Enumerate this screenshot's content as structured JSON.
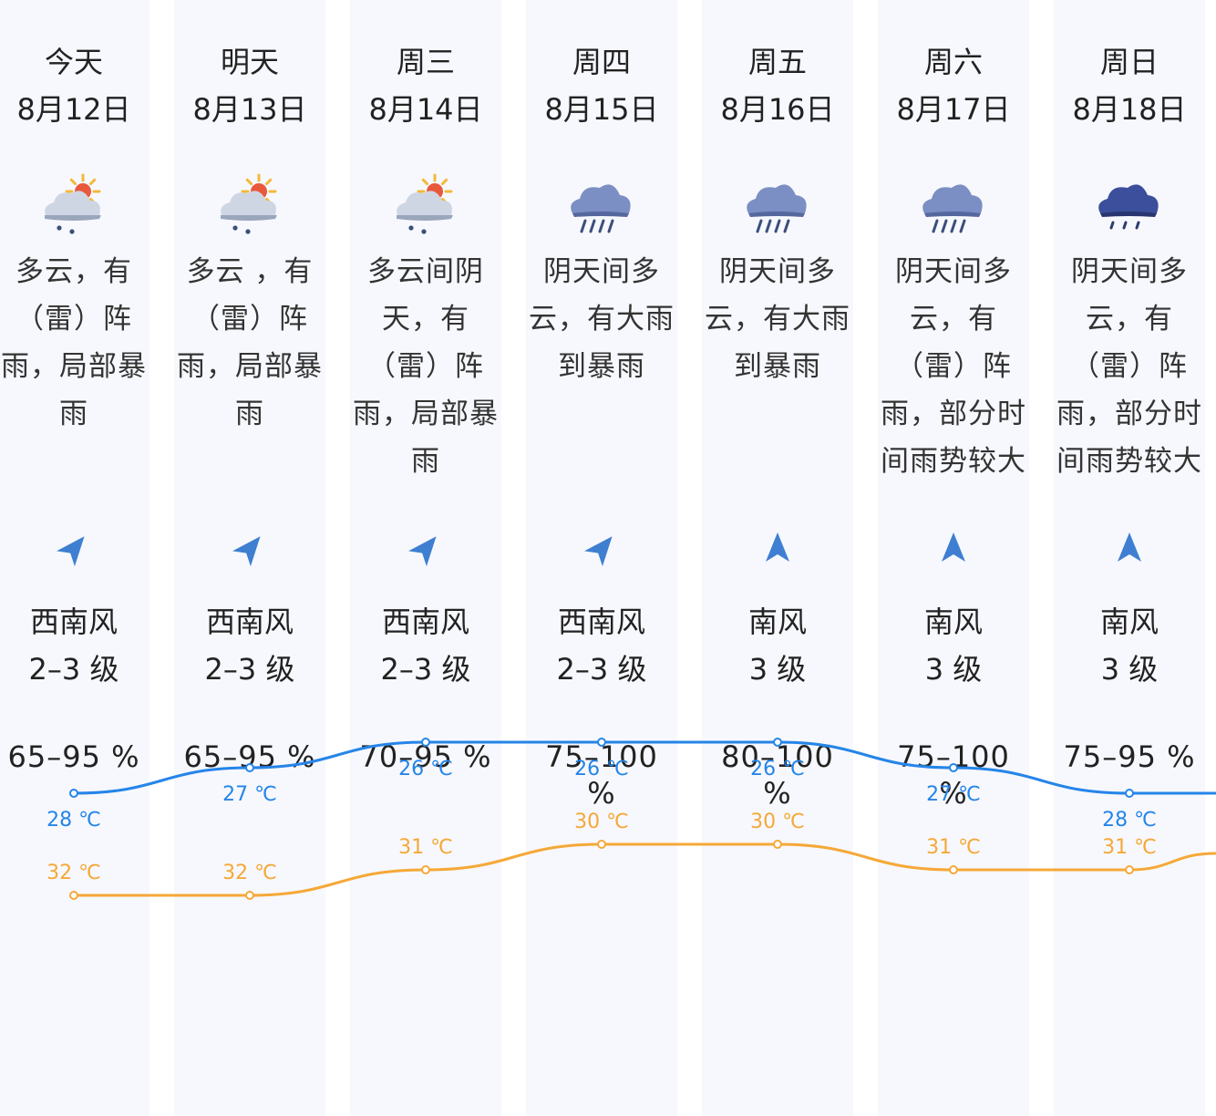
{
  "days": [
    {
      "weekday": "今天",
      "date": "8月12日",
      "icon": "partly-cloudy-thundershower-icon",
      "desc_lines": [
        "多云，有",
        "（雷）阵",
        "雨，局部暴",
        "雨"
      ],
      "wind_dir": "西南风",
      "wind_level": "2–3 级",
      "wind_arrow": "southwest-wind-arrow-icon",
      "humidity": "65–95 %",
      "high": "32 ℃",
      "low": "28 ℃"
    },
    {
      "weekday": "明天",
      "date": "8月13日",
      "icon": "partly-cloudy-thundershower-icon",
      "desc_lines": [
        "多云 ，有",
        "（雷）阵",
        "雨，局部暴",
        "雨"
      ],
      "wind_dir": "西南风",
      "wind_level": "2–3 级",
      "wind_arrow": "southwest-wind-arrow-icon",
      "humidity": "65–95 %",
      "high": "32 ℃",
      "low": "27 ℃"
    },
    {
      "weekday": "周三",
      "date": "8月14日",
      "icon": "partly-cloudy-thundershower-icon",
      "desc_lines": [
        "多云间阴",
        "天，有",
        "（雷）阵",
        "雨，局部暴",
        "雨"
      ],
      "wind_dir": "西南风",
      "wind_level": "2–3 级",
      "wind_arrow": "southwest-wind-arrow-icon",
      "humidity": "70–95 %",
      "high": "31 ℃",
      "low": "26 ℃"
    },
    {
      "weekday": "周四",
      "date": "8月15日",
      "icon": "heavy-rain-icon",
      "desc_lines": [
        "阴天间多",
        "云，有大雨",
        "到暴雨"
      ],
      "wind_dir": "西南风",
      "wind_level": "2–3 级",
      "wind_arrow": "southwest-wind-arrow-icon",
      "humidity": "75–100 %",
      "high": "30 ℃",
      "low": "26 ℃"
    },
    {
      "weekday": "周五",
      "date": "8月16日",
      "icon": "heavy-rain-icon",
      "desc_lines": [
        "阴天间多",
        "云，有大雨",
        "到暴雨"
      ],
      "wind_dir": "南风",
      "wind_level": "3 级",
      "wind_arrow": "south-wind-arrow-icon",
      "humidity": "80–100 %",
      "high": "30 ℃",
      "low": "26 ℃"
    },
    {
      "weekday": "周六",
      "date": "8月17日",
      "icon": "heavy-rain-icon",
      "desc_lines": [
        "阴天间多",
        "云，有",
        "（雷）阵",
        "雨，部分时",
        "间雨势较大"
      ],
      "wind_dir": "南风",
      "wind_level": "3 级",
      "wind_arrow": "south-wind-arrow-icon",
      "humidity": "75–100 %",
      "high": "31 ℃",
      "low": "27 ℃"
    },
    {
      "weekday": "周日",
      "date": "8月18日",
      "icon": "thundershower-icon",
      "desc_lines": [
        "阴天间多",
        "云，有",
        "（雷）阵",
        "雨，部分时",
        "间雨势较大"
      ],
      "wind_dir": "南风",
      "wind_level": "3 级",
      "wind_arrow": "south-wind-arrow-icon",
      "humidity": "75–95 %",
      "high": "31 ℃",
      "low": "28 ℃"
    }
  ],
  "colors": {
    "high_line": "#f5a838",
    "low_line": "#2585e8",
    "column_bg": "#f7f8fd",
    "arrow": "#3e7fd1",
    "cloud_light": "#a9b9cf",
    "cloud_dark": "#3c4f9c",
    "sun": "#f3b93c"
  },
  "chart_data": {
    "type": "line",
    "categories": [
      "8月12日",
      "8月13日",
      "8月14日",
      "8月15日",
      "8月16日",
      "8月17日",
      "8月18日"
    ],
    "series": [
      {
        "values": [
          32,
          32,
          31,
          30,
          30,
          31,
          31
        ]
      },
      {
        "values": [
          28,
          27,
          26,
          26,
          26,
          27,
          28
        ]
      }
    ],
    "unit": "℃",
    "ylim": [
      25,
      33
    ],
    "grid": false,
    "legend": "none"
  }
}
